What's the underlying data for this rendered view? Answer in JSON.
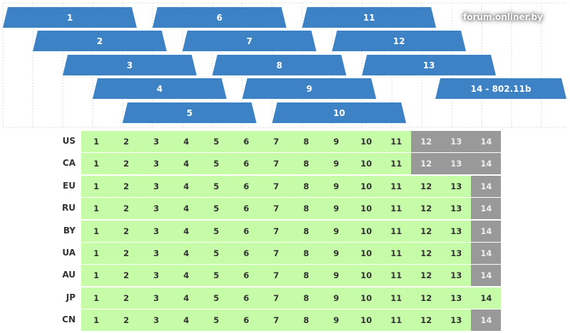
{
  "channels": [
    {
      "label": "1"
    },
    {
      "label": "2"
    },
    {
      "label": "3"
    },
    {
      "label": "4"
    },
    {
      "label": "5"
    },
    {
      "label": "6"
    },
    {
      "label": "7"
    },
    {
      "label": "8"
    },
    {
      "label": "9"
    },
    {
      "label": "10"
    },
    {
      "label": "11"
    },
    {
      "label": "12"
    },
    {
      "label": "13"
    },
    {
      "label": "14 - 802.11b"
    }
  ],
  "colors": {
    "channel_bar": "#3d82c4",
    "allowed": "#c6fca8",
    "not_allowed": "#999999",
    "text": "#333333"
  },
  "countries": [
    {
      "code": "US",
      "allowed": [
        1,
        2,
        3,
        4,
        5,
        6,
        7,
        8,
        9,
        10,
        11
      ]
    },
    {
      "code": "CA",
      "allowed": [
        1,
        2,
        3,
        4,
        5,
        6,
        7,
        8,
        9,
        10,
        11
      ]
    },
    {
      "code": "EU",
      "allowed": [
        1,
        2,
        3,
        4,
        5,
        6,
        7,
        8,
        9,
        10,
        11,
        12,
        13
      ]
    },
    {
      "code": "RU",
      "allowed": [
        1,
        2,
        3,
        4,
        5,
        6,
        7,
        8,
        9,
        10,
        11,
        12,
        13
      ]
    },
    {
      "code": "BY",
      "allowed": [
        1,
        2,
        3,
        4,
        5,
        6,
        7,
        8,
        9,
        10,
        11,
        12,
        13
      ]
    },
    {
      "code": "UA",
      "allowed": [
        1,
        2,
        3,
        4,
        5,
        6,
        7,
        8,
        9,
        10,
        11,
        12,
        13
      ]
    },
    {
      "code": "AU",
      "allowed": [
        1,
        2,
        3,
        4,
        5,
        6,
        7,
        8,
        9,
        10,
        11,
        12,
        13
      ]
    },
    {
      "code": "JP",
      "allowed": [
        1,
        2,
        3,
        4,
        5,
        6,
        7,
        8,
        9,
        10,
        11,
        12,
        13,
        14
      ]
    },
    {
      "code": "CN",
      "allowed": [
        1,
        2,
        3,
        4,
        5,
        6,
        7,
        8,
        9,
        10,
        11,
        12,
        13
      ]
    }
  ],
  "channel_numbers": [
    "1",
    "2",
    "3",
    "4",
    "5",
    "6",
    "7",
    "8",
    "9",
    "10",
    "11",
    "12",
    "13",
    "14"
  ],
  "watermark": "forum.onliner.by"
}
